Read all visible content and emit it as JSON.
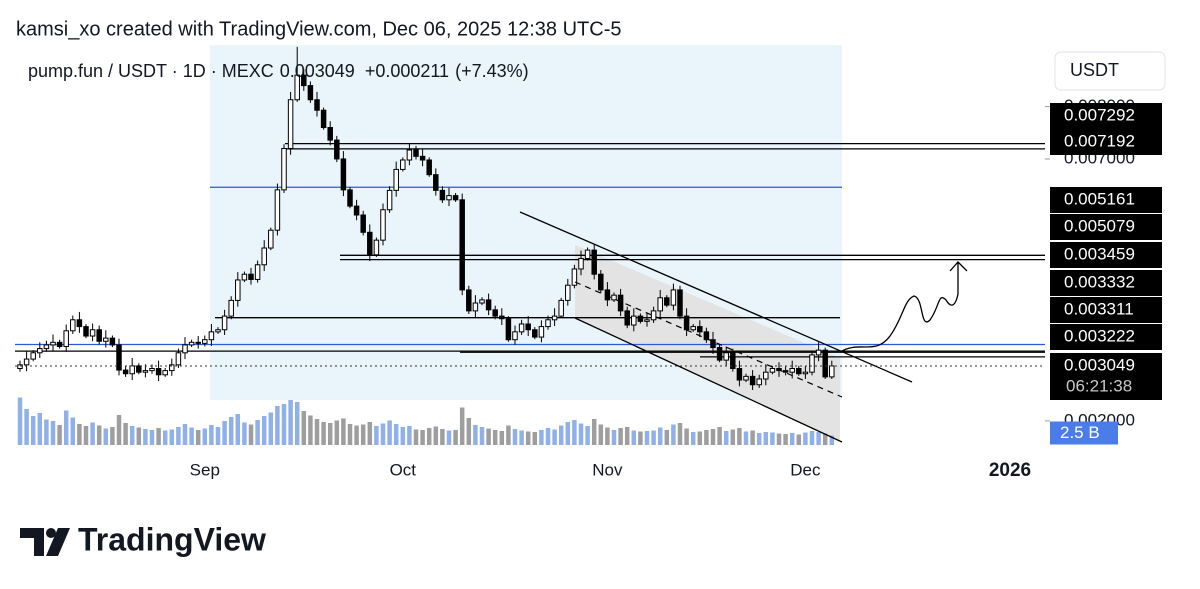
{
  "chart_data": {
    "type": "candlestick",
    "attribution": "kamsi_xo created with TradingView.com, Dec 06, 2025 12:38 UTC-5",
    "title": "pump.fun / USDT · 1D · MEXC",
    "change": {
      "value": 0.000211,
      "label": "+0.000211"
    },
    "change_percent": {
      "value": 7.43,
      "label": "(+7.43%)"
    },
    "currency": "USDT",
    "countdown": "06:21:38",
    "logo": "TradingView",
    "xlim": [
      0,
      150
    ],
    "xticks": [
      {
        "value": 28,
        "label": "Sep"
      },
      {
        "value": 58,
        "label": "Oct"
      },
      {
        "value": 89,
        "label": "Nov"
      },
      {
        "value": 119,
        "label": "Dec"
      },
      {
        "value": 150,
        "label": "2026"
      }
    ],
    "ylim": [
      0.00154,
      0.009175
    ],
    "yticks": [
      {
        "value": 0.002,
        "label": "0.002000"
      },
      {
        "value": 0.007,
        "label": "0.007000"
      },
      {
        "value": 0.008,
        "label": "0.008000"
      }
    ],
    "up_color": "#ffffff",
    "down_color": "#000000",
    "outline_color": "#000000",
    "open": [
      0.003,
      0.00307,
      0.00318,
      0.0033,
      0.00338,
      0.00345,
      0.0035,
      0.00342,
      0.00372,
      0.00393,
      0.0038,
      0.00362,
      0.00374,
      0.00352,
      0.00358,
      0.00345,
      0.00297,
      0.0029,
      0.00305,
      0.00293,
      0.00296,
      0.003,
      0.00288,
      0.00296,
      0.00307,
      0.0033,
      0.00345,
      0.0035,
      0.00348,
      0.00355,
      0.0037,
      0.00374,
      0.004,
      0.0043,
      0.00469,
      0.0048,
      0.0047,
      0.00498,
      0.0053,
      0.00564,
      0.00641,
      0.0072,
      0.00813,
      0.0086,
      0.0084,
      0.00813,
      0.00793,
      0.0076,
      0.00736,
      0.007,
      0.00641,
      0.0061,
      0.00593,
      0.0056,
      0.00517,
      0.00545,
      0.00603,
      0.0064,
      0.0068,
      0.00698,
      0.00717,
      0.00705,
      0.00698,
      0.0067,
      0.0064,
      0.00622,
      0.0063,
      0.00622,
      0.0045,
      0.0041,
      0.00425,
      0.00431,
      0.00412,
      0.004,
      0.00395,
      0.00355,
      0.0037,
      0.00385,
      0.00374,
      0.0036,
      0.0038,
      0.00393,
      0.004,
      0.0043,
      0.00459,
      0.0049,
      0.0051,
      0.00526,
      0.0048,
      0.0045,
      0.00431,
      0.0044,
      0.0041,
      0.00383,
      0.004,
      0.0039,
      0.00393,
      0.0041,
      0.00435,
      0.00421,
      0.0045,
      0.004,
      0.00374,
      0.0038,
      0.0037,
      0.00355,
      0.0034,
      0.00316,
      0.0033,
      0.003,
      0.00278,
      0.00285,
      0.00269,
      0.0028,
      0.00293,
      0.003,
      0.00296,
      0.00293,
      0.003,
      0.0029,
      0.00293,
      0.00326,
      0.00335,
      0.00284
    ],
    "high": [
      0.00315,
      0.00333,
      0.00335,
      0.0035,
      0.00353,
      0.00365,
      0.00355,
      0.00384,
      0.00401,
      0.00408,
      0.00385,
      0.00386,
      0.00382,
      0.00373,
      0.00363,
      0.00357,
      0.00305,
      0.0032,
      0.0031,
      0.00308,
      0.00308,
      0.00315,
      0.00301,
      0.00319,
      0.00338,
      0.0036,
      0.00355,
      0.00362,
      0.00363,
      0.00385,
      0.00379,
      0.00412,
      0.00438,
      0.00484,
      0.00485,
      0.00492,
      0.00506,
      0.00545,
      0.00569,
      0.00653,
      0.00728,
      0.00828,
      0.00914,
      0.00872,
      0.00848,
      0.00828,
      0.00798,
      0.00772,
      0.00744,
      0.00715,
      0.00646,
      0.00622,
      0.00601,
      0.00575,
      0.0055,
      0.00615,
      0.00648,
      0.00695,
      0.00703,
      0.00729,
      0.00725,
      0.0072,
      0.00703,
      0.00682,
      0.00648,
      0.00645,
      0.00635,
      0.00634,
      0.00458,
      0.0044,
      0.00436,
      0.00443,
      0.0042,
      0.00415,
      0.004,
      0.00382,
      0.00393,
      0.004,
      0.00379,
      0.00392,
      0.00401,
      0.00415,
      0.00435,
      0.00471,
      0.00498,
      0.00525,
      0.00531,
      0.00538,
      0.00488,
      0.00465,
      0.00445,
      0.00452,
      0.00418,
      0.00415,
      0.00405,
      0.00405,
      0.00418,
      0.0045,
      0.0044,
      0.00462,
      0.00458,
      0.00415,
      0.00385,
      0.00392,
      0.00378,
      0.0037,
      0.00345,
      0.00342,
      0.00338,
      0.00315,
      0.0029,
      0.00297,
      0.00288,
      0.00308,
      0.00305,
      0.00312,
      0.00304,
      0.00315,
      0.00305,
      0.00305,
      0.00334,
      0.0035,
      0.0034,
      0.00315
    ],
    "low": [
      0.00294,
      0.00295,
      0.00314,
      0.0032,
      0.00332,
      0.00333,
      0.00338,
      0.00332,
      0.00366,
      0.00368,
      0.00358,
      0.00352,
      0.00346,
      0.0034,
      0.00341,
      0.00287,
      0.00284,
      0.00278,
      0.00289,
      0.00283,
      0.0029,
      0.00276,
      0.00284,
      0.00286,
      0.00301,
      0.00318,
      0.00341,
      0.00338,
      0.00342,
      0.00343,
      0.00366,
      0.00364,
      0.00394,
      0.00418,
      0.00465,
      0.0046,
      0.00464,
      0.00486,
      0.00526,
      0.00554,
      0.00635,
      0.00708,
      0.00809,
      0.0083,
      0.00807,
      0.00781,
      0.00756,
      0.00726,
      0.00694,
      0.00629,
      0.00606,
      0.00583,
      0.00554,
      0.00505,
      0.00513,
      0.00535,
      0.00597,
      0.00628,
      0.00676,
      0.00688,
      0.00699,
      0.00686,
      0.00666,
      0.0063,
      0.00616,
      0.0061,
      0.00618,
      0.0044,
      0.00404,
      0.00398,
      0.00421,
      0.00402,
      0.00394,
      0.00383,
      0.00351,
      0.00345,
      0.00364,
      0.00362,
      0.00356,
      0.0035,
      0.00374,
      0.00381,
      0.00396,
      0.0042,
      0.00453,
      0.00478,
      0.00506,
      0.0047,
      0.00444,
      0.00419,
      0.00427,
      0.004,
      0.00377,
      0.00371,
      0.00386,
      0.0038,
      0.00387,
      0.00398,
      0.00417,
      0.00411,
      0.00394,
      0.00362,
      0.0037,
      0.0036,
      0.00349,
      0.00328,
      0.00312,
      0.00306,
      0.00294,
      0.00266,
      0.00274,
      0.00259,
      0.00263,
      0.00268,
      0.00289,
      0.00284,
      0.00287,
      0.00281,
      0.00286,
      0.0028,
      0.00287,
      0.00314,
      0.0028,
      0.0028
    ],
    "close": [
      0.00307,
      0.00318,
      0.0033,
      0.00338,
      0.00345,
      0.0035,
      0.00342,
      0.00372,
      0.00393,
      0.0038,
      0.00362,
      0.00374,
      0.00352,
      0.00358,
      0.00345,
      0.00297,
      0.0029,
      0.00305,
      0.00293,
      0.00296,
      0.003,
      0.00288,
      0.00296,
      0.00307,
      0.0033,
      0.00345,
      0.0035,
      0.00348,
      0.00355,
      0.0037,
      0.00374,
      0.004,
      0.0043,
      0.00469,
      0.0048,
      0.0047,
      0.00498,
      0.0053,
      0.00564,
      0.00641,
      0.0072,
      0.00813,
      0.0086,
      0.0084,
      0.00813,
      0.00793,
      0.0076,
      0.00736,
      0.007,
      0.00641,
      0.0061,
      0.00593,
      0.0056,
      0.00517,
      0.00545,
      0.00603,
      0.0064,
      0.0068,
      0.00698,
      0.00717,
      0.00705,
      0.00698,
      0.0067,
      0.0064,
      0.00622,
      0.0063,
      0.00622,
      0.0045,
      0.0041,
      0.00425,
      0.00431,
      0.00412,
      0.004,
      0.00395,
      0.00355,
      0.0037,
      0.00385,
      0.00374,
      0.0036,
      0.0038,
      0.00393,
      0.004,
      0.0043,
      0.00459,
      0.0049,
      0.0051,
      0.00526,
      0.0048,
      0.0045,
      0.00431,
      0.0044,
      0.0041,
      0.00383,
      0.004,
      0.0039,
      0.00393,
      0.0041,
      0.00435,
      0.00421,
      0.0045,
      0.004,
      0.00374,
      0.0038,
      0.0037,
      0.00355,
      0.0034,
      0.00316,
      0.0033,
      0.003,
      0.00278,
      0.00285,
      0.00269,
      0.0028,
      0.00293,
      0.003,
      0.00296,
      0.00293,
      0.003,
      0.0029,
      0.00293,
      0.00326,
      0.00335,
      0.00284,
      0.003049
    ],
    "volume": [
      9.5,
      7.2,
      5.8,
      6.4,
      5.1,
      4.8,
      4.0,
      6.9,
      5.5,
      4.2,
      3.8,
      4.5,
      3.9,
      3.3,
      3.6,
      6.0,
      4.4,
      3.8,
      3.5,
      3.2,
      3.0,
      3.4,
      2.9,
      3.1,
      3.6,
      4.2,
      3.5,
      3.0,
      3.3,
      4.0,
      3.6,
      4.8,
      5.6,
      6.2,
      4.5,
      4.1,
      5.0,
      5.8,
      6.5,
      7.8,
      8.2,
      9.0,
      8.6,
      6.8,
      5.9,
      5.2,
      4.6,
      4.4,
      4.9,
      5.3,
      4.2,
      3.9,
      4.1,
      4.6,
      3.8,
      4.3,
      4.9,
      4.2,
      3.6,
      3.8,
      3.1,
      3.0,
      3.4,
      3.7,
      3.2,
      2.9,
      3.0,
      7.5,
      5.4,
      4.0,
      3.6,
      3.3,
      3.0,
      2.8,
      3.9,
      3.2,
      2.9,
      2.7,
      2.6,
      3.0,
      3.4,
      3.1,
      3.9,
      4.6,
      5.0,
      4.3,
      3.8,
      5.2,
      4.1,
      3.5,
      3.0,
      3.4,
      3.6,
      2.9,
      2.7,
      2.8,
      2.9,
      3.5,
      3.0,
      4.1,
      4.4,
      3.3,
      2.6,
      2.7,
      3.0,
      3.2,
      3.6,
      2.8,
      3.1,
      3.4,
      2.7,
      2.9,
      2.4,
      2.6,
      2.5,
      2.3,
      2.2,
      2.4,
      2.1,
      2.5,
      2.8,
      2.6,
      2.3,
      1.9
    ],
    "volume_lim": [
      0,
      12
    ],
    "volume_up_color": "#8fb0e8",
    "volume_down_color": "#9e9e9e",
    "volume_ma_label": {
      "value": 2.5,
      "label": "2.5 B"
    },
    "volume_ma_color": "#4a7de8",
    "levels": [
      {
        "value": 0.007292,
        "color": "#000000"
      },
      {
        "value": 0.007192,
        "color": "#000000"
      },
      {
        "value": 0.005161,
        "color": "#000000"
      },
      {
        "value": 0.005079,
        "color": "#000000"
      },
      {
        "value": 0.003459,
        "color": "#2a5bd7"
      },
      {
        "value": 0.003332,
        "color": "#000000"
      },
      {
        "value": 0.003311,
        "color": "#000000"
      },
      {
        "value": 0.003222,
        "color": "#000000"
      }
    ],
    "unlabeled_levels": [
      {
        "value": 0.00646,
        "color": "#2a5bd7"
      },
      {
        "value": 0.00397,
        "color": "#000000"
      }
    ]
  }
}
